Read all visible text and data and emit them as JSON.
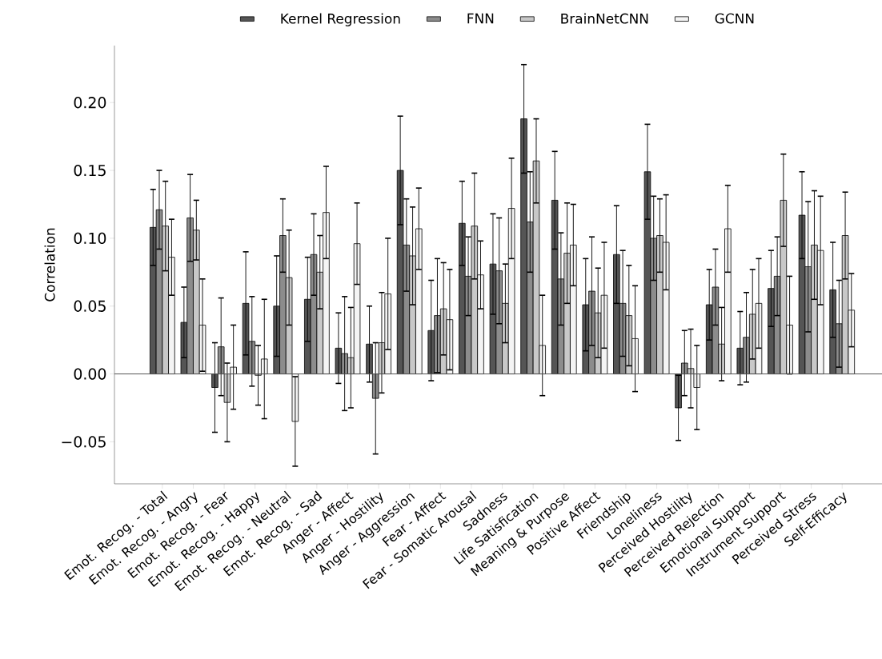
{
  "chart_data": {
    "type": "bar",
    "ylabel": "Correlation",
    "categories": [
      "Emot. Recog. - Total",
      "Emot. Recog. - Angry",
      "Emot. Recog. - Fear",
      "Emot. Recog. - Happy",
      "Emot. Recog. - Neutral",
      "Emot. Recog. - Sad",
      "Anger - Affect",
      "Anger - Hostility",
      "Anger - Aggression",
      "Fear - Affect",
      "Fear - Somatic Arousal",
      "Sadness",
      "Life Satisfication",
      "Meaning & Purpose",
      "Positive Affect",
      "Friendship",
      "Loneliness",
      "Perceived Hostility",
      "Perceived Rejection",
      "Emotional Support",
      "Instrument Support",
      "Perceived Stress",
      "Self-Efficacy"
    ],
    "series": [
      {
        "name": "Kernel Regression",
        "color": "#555555",
        "values": [
          0.108,
          0.038,
          -0.01,
          0.052,
          0.05,
          0.055,
          0.019,
          0.022,
          0.15,
          0.032,
          0.111,
          0.081,
          0.188,
          0.128,
          0.051,
          0.088,
          0.149,
          -0.025,
          0.051,
          0.019,
          0.063,
          0.117,
          0.062
        ],
        "errors": [
          0.028,
          0.026,
          0.033,
          0.038,
          0.037,
          0.031,
          0.026,
          0.028,
          0.04,
          0.037,
          0.031,
          0.037,
          0.04,
          0.036,
          0.034,
          0.036,
          0.035,
          0.024,
          0.026,
          0.027,
          0.028,
          0.032,
          0.035
        ]
      },
      {
        "name": "FNN",
        "color": "#8c8c8c",
        "values": [
          0.121,
          0.115,
          0.02,
          0.024,
          0.102,
          0.088,
          0.015,
          -0.018,
          0.095,
          0.043,
          0.072,
          0.076,
          0.112,
          0.07,
          0.061,
          0.052,
          0.1,
          0.008,
          0.064,
          0.027,
          0.072,
          0.079,
          0.037
        ],
        "errors": [
          0.029,
          0.032,
          0.036,
          0.033,
          0.027,
          0.03,
          0.042,
          0.041,
          0.034,
          0.042,
          0.029,
          0.039,
          0.037,
          0.034,
          0.04,
          0.039,
          0.031,
          0.024,
          0.028,
          0.033,
          0.029,
          0.048,
          0.032
        ]
      },
      {
        "name": "BrainNetCNN",
        "color": "#c8c8c8",
        "values": [
          0.109,
          0.106,
          -0.021,
          -0.001,
          0.071,
          0.075,
          0.012,
          0.023,
          0.087,
          0.048,
          0.109,
          0.052,
          0.157,
          0.089,
          0.045,
          0.043,
          0.102,
          0.004,
          0.022,
          0.044,
          0.128,
          0.095,
          0.102
        ],
        "errors": [
          0.033,
          0.022,
          0.029,
          0.022,
          0.035,
          0.027,
          0.037,
          0.037,
          0.036,
          0.034,
          0.039,
          0.029,
          0.031,
          0.037,
          0.033,
          0.037,
          0.027,
          0.029,
          0.027,
          0.033,
          0.034,
          0.04,
          0.032
        ]
      },
      {
        "name": "GCNN",
        "color": "#f4f4f4",
        "values": [
          0.086,
          0.036,
          0.005,
          0.011,
          -0.035,
          0.119,
          0.096,
          0.059,
          0.107,
          0.04,
          0.073,
          0.122,
          0.021,
          0.095,
          0.058,
          0.026,
          0.097,
          -0.01,
          0.107,
          0.052,
          0.036,
          0.091,
          0.047
        ],
        "errors": [
          0.028,
          0.034,
          0.031,
          0.044,
          0.033,
          0.034,
          0.03,
          0.041,
          0.03,
          0.037,
          0.025,
          0.037,
          0.037,
          0.03,
          0.039,
          0.039,
          0.035,
          0.031,
          0.032,
          0.033,
          0.036,
          0.04,
          0.027
        ]
      }
    ],
    "ylim": [
      -0.081,
      0.242
    ],
    "yticks": [
      {
        "value": -0.05,
        "label": "−0.05"
      },
      {
        "value": 0,
        "label": "0.00"
      },
      {
        "value": 0.05,
        "label": "0.05"
      },
      {
        "value": 0.1,
        "label": "0.10"
      },
      {
        "value": 0.15,
        "label": "0.15"
      },
      {
        "value": 0.2,
        "label": "0.20"
      }
    ],
    "ref_lines": [
      {
        "axis": "y",
        "value": 0,
        "color": "#555555"
      }
    ],
    "grid": false,
    "legend": "top"
  }
}
